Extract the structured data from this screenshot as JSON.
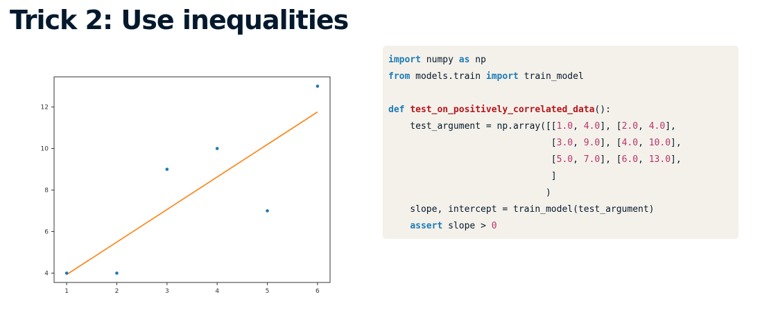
{
  "slide": {
    "title": "Trick 2: Use inequalities"
  },
  "chart_data": {
    "type": "scatter",
    "points": [
      {
        "x": 1,
        "y": 4
      },
      {
        "x": 2,
        "y": 4
      },
      {
        "x": 3,
        "y": 9
      },
      {
        "x": 4,
        "y": 10
      },
      {
        "x": 5,
        "y": 7
      },
      {
        "x": 6,
        "y": 13
      }
    ],
    "fit_line": {
      "x": [
        1,
        6
      ],
      "y": [
        3.93,
        11.76
      ]
    },
    "xlim": [
      0.75,
      6.25
    ],
    "ylim": [
      3.55,
      13.45
    ],
    "x_ticks": [
      1,
      2,
      3,
      4,
      5,
      6
    ],
    "y_ticks": [
      4,
      6,
      8,
      10,
      12
    ],
    "point_color": "#1f77b4",
    "line_color": "#ff7f0e",
    "grid": false,
    "title": "",
    "xlabel": "",
    "ylabel": ""
  },
  "code": {
    "l1_kw1": "import",
    "l1_mid": " numpy ",
    "l1_kw2": "as",
    "l1_end": " np",
    "l2_kw1": "from",
    "l2_mid": " models.train ",
    "l2_kw2": "import",
    "l2_end": " train_model",
    "l4_kw": "def",
    "l4_fn": "test_on_positively_correlated_data",
    "l4_end": "():",
    "l5_a": "    test_argument = np.array([[",
    "l5_n1": "1.0",
    "l5_b": ", ",
    "l5_n2": "4.0",
    "l5_c": "], [",
    "l5_n3": "2.0",
    "l5_d": ", ",
    "l5_n4": "4.0",
    "l5_e": "],",
    "l6_a": "                              [",
    "l6_n1": "3.0",
    "l6_b": ", ",
    "l6_n2": "9.0",
    "l6_c": "], [",
    "l6_n3": "4.0",
    "l6_d": ", ",
    "l6_n4": "10.0",
    "l6_e": "],",
    "l7_a": "                              [",
    "l7_n1": "5.0",
    "l7_b": ", ",
    "l7_n2": "7.0",
    "l7_c": "], [",
    "l7_n3": "6.0",
    "l7_d": ", ",
    "l7_n4": "13.0",
    "l7_e": "],",
    "l8": "                              ]",
    "l9": "                             )",
    "l10": "    slope, intercept = train_model(test_argument)",
    "l11_a": "    ",
    "l11_kw": "assert",
    "l11_b": " slope > ",
    "l11_n": "0"
  }
}
